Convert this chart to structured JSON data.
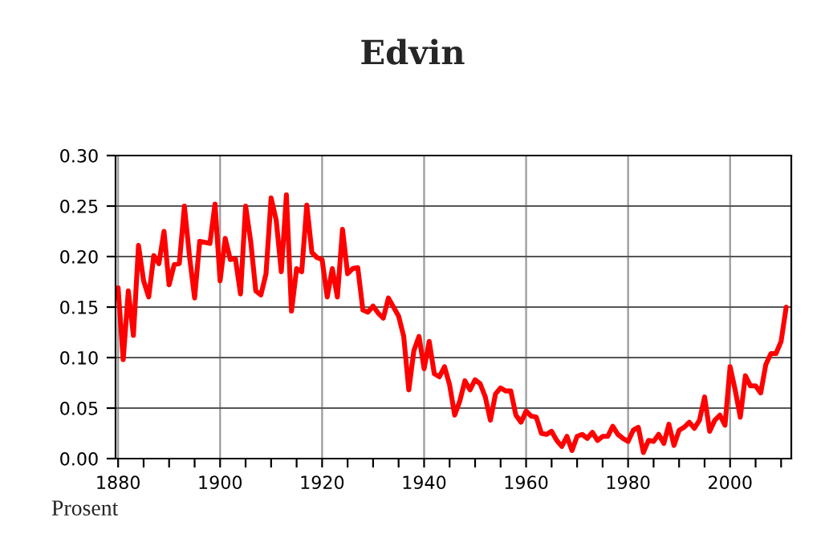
{
  "chart_data": {
    "type": "line",
    "title": "Edvin",
    "annotations": [
      "Prosent"
    ],
    "x": [
      1880,
      1881,
      1882,
      1883,
      1884,
      1885,
      1886,
      1887,
      1888,
      1889,
      1890,
      1891,
      1892,
      1893,
      1894,
      1895,
      1896,
      1897,
      1898,
      1899,
      1900,
      1901,
      1902,
      1903,
      1904,
      1905,
      1906,
      1907,
      1908,
      1909,
      1910,
      1911,
      1912,
      1913,
      1914,
      1915,
      1916,
      1917,
      1918,
      1919,
      1920,
      1921,
      1922,
      1923,
      1924,
      1925,
      1926,
      1927,
      1928,
      1929,
      1930,
      1931,
      1932,
      1933,
      1934,
      1935,
      1936,
      1937,
      1938,
      1939,
      1940,
      1941,
      1942,
      1943,
      1944,
      1945,
      1946,
      1947,
      1948,
      1949,
      1950,
      1951,
      1952,
      1953,
      1954,
      1955,
      1956,
      1957,
      1958,
      1959,
      1960,
      1961,
      1962,
      1963,
      1964,
      1965,
      1966,
      1967,
      1968,
      1969,
      1970,
      1971,
      1972,
      1973,
      1974,
      1975,
      1976,
      1977,
      1978,
      1979,
      1980,
      1981,
      1982,
      1983,
      1984,
      1985,
      1986,
      1987,
      1988,
      1989,
      1990,
      1991,
      1992,
      1993,
      1994,
      1995,
      1996,
      1997,
      1998,
      1999,
      2000,
      2001,
      2002,
      2003,
      2004,
      2005,
      2006,
      2007,
      2008,
      2009,
      2010,
      2011
    ],
    "series": [
      {
        "color": "#ff0000",
        "values": [
          0.169,
          0.098,
          0.166,
          0.122,
          0.211,
          0.176,
          0.16,
          0.201,
          0.193,
          0.225,
          0.172,
          0.192,
          0.193,
          0.25,
          0.2,
          0.159,
          0.215,
          0.214,
          0.213,
          0.252,
          0.176,
          0.218,
          0.197,
          0.198,
          0.163,
          0.25,
          0.215,
          0.166,
          0.162,
          0.183,
          0.258,
          0.236,
          0.185,
          0.261,
          0.146,
          0.188,
          0.185,
          0.251,
          0.204,
          0.199,
          0.197,
          0.16,
          0.188,
          0.16,
          0.227,
          0.183,
          0.188,
          0.189,
          0.147,
          0.145,
          0.151,
          0.144,
          0.139,
          0.159,
          0.15,
          0.141,
          0.121,
          0.068,
          0.107,
          0.121,
          0.089,
          0.116,
          0.084,
          0.081,
          0.091,
          0.073,
          0.043,
          0.057,
          0.077,
          0.068,
          0.078,
          0.074,
          0.061,
          0.038,
          0.064,
          0.07,
          0.067,
          0.067,
          0.043,
          0.036,
          0.047,
          0.042,
          0.041,
          0.025,
          0.024,
          0.027,
          0.018,
          0.012,
          0.022,
          0.008,
          0.022,
          0.024,
          0.02,
          0.026,
          0.018,
          0.022,
          0.022,
          0.032,
          0.024,
          0.02,
          0.017,
          0.028,
          0.031,
          0.006,
          0.018,
          0.017,
          0.024,
          0.015,
          0.034,
          0.013,
          0.028,
          0.031,
          0.036,
          0.03,
          0.038,
          0.061,
          0.027,
          0.038,
          0.043,
          0.033,
          0.091,
          0.068,
          0.041,
          0.082,
          0.072,
          0.072,
          0.065,
          0.093,
          0.104,
          0.104,
          0.116,
          0.15
        ]
      }
    ],
    "xlim": [
      1879.5,
      2012
    ],
    "xticks": [
      1880,
      {
        "value": 1885,
        "label": null
      },
      {
        "value": 1890,
        "label": null
      },
      {
        "value": 1895,
        "label": null
      },
      1900,
      {
        "value": 1905,
        "label": null
      },
      {
        "value": 1910,
        "label": null
      },
      {
        "value": 1915,
        "label": null
      },
      1920,
      {
        "value": 1925,
        "label": null
      },
      {
        "value": 1930,
        "label": null
      },
      {
        "value": 1935,
        "label": null
      },
      1940,
      {
        "value": 1945,
        "label": null
      },
      {
        "value": 1950,
        "label": null
      },
      {
        "value": 1955,
        "label": null
      },
      1960,
      {
        "value": 1965,
        "label": null
      },
      {
        "value": 1970,
        "label": null
      },
      {
        "value": 1975,
        "label": null
      },
      1980,
      {
        "value": 1985,
        "label": null
      },
      {
        "value": 1990,
        "label": null
      },
      {
        "value": 1995,
        "label": null
      },
      2000,
      {
        "value": 2005,
        "label": null
      },
      {
        "value": 2010,
        "label": null
      }
    ],
    "ylim": [
      0,
      0.3
    ],
    "yticks": [
      {
        "value": 0,
        "label": "0.00"
      },
      {
        "value": 0.05,
        "label": "0.05"
      },
      {
        "value": 0.1,
        "label": "0.10"
      },
      {
        "value": 0.15,
        "label": "0.15"
      },
      {
        "value": 0.2,
        "label": "0.20"
      },
      {
        "value": 0.25,
        "label": "0.25"
      },
      {
        "value": 0.3,
        "label": "0.30"
      }
    ],
    "grid": true,
    "line_style": "solid",
    "legend": false
  }
}
